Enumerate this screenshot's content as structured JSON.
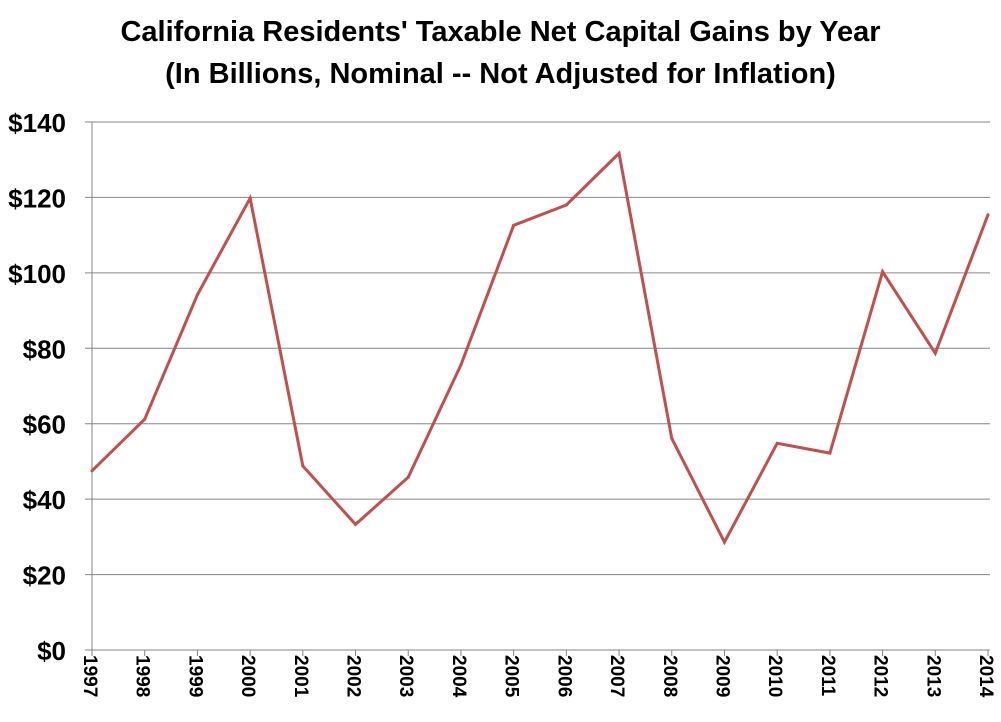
{
  "chart_data": {
    "type": "line",
    "title": "California Residents' Taxable Net Capital Gains by Year",
    "subtitle": "(In Billions, Nominal -- Not Adjusted for Inflation)",
    "xlabel": "",
    "ylabel": "",
    "ylim": [
      0,
      140
    ],
    "y_ticks": [
      0,
      20,
      40,
      60,
      80,
      100,
      120,
      140
    ],
    "y_tick_labels": [
      "$0",
      "$20",
      "$40",
      "$60",
      "$80",
      "$100",
      "$120",
      "$140"
    ],
    "grid": true,
    "legend": "none",
    "categories": [
      "1997",
      "1998",
      "1999",
      "2000",
      "2001",
      "2002",
      "2003",
      "2004",
      "2005",
      "2006",
      "2007",
      "2008",
      "2009",
      "2010",
      "2011",
      "2012",
      "2013",
      "2014"
    ],
    "series": [
      {
        "values": [
          47.5,
          61.2,
          94.2,
          119.8,
          48.8,
          33.3,
          45.8,
          75.6,
          112.6,
          118.0,
          131.7,
          56.1,
          28.6,
          54.8,
          52.2,
          100.3,
          78.7,
          115.4
        ],
        "color": "#c0504d"
      }
    ]
  }
}
